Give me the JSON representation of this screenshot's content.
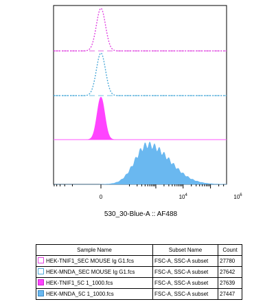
{
  "chart_data": {
    "type": "area",
    "xlabel": "530_30-Blue-A :: AF488",
    "x_scale": "biexponential",
    "x_tick_labels": [
      {
        "value": 0,
        "label": "0"
      },
      {
        "value": 10000,
        "label": "10",
        "exp": "4"
      },
      {
        "value": 1000000,
        "label": "10",
        "exp": "6"
      }
    ],
    "series": [
      {
        "name": "HEK-TNIF1_SEC MOUSE Ig G1.fcs",
        "color": "#e040e0",
        "style": "dotted",
        "filled": false,
        "center": 0,
        "spread": 0.035,
        "offset_line_color": "#e060e0"
      },
      {
        "name": "HEK-MNDA_SEC MOUSE Ig G1.fcs",
        "color": "#4aa8d8",
        "style": "dotted",
        "filled": false,
        "center": 0,
        "spread": 0.035,
        "offset_line_color": "#70c0e0"
      },
      {
        "name": "HEK-TNIF1_5C 1_1000.fcs",
        "color": "#ff44ff",
        "style": "solid",
        "filled": true,
        "center": 0,
        "spread": 0.03,
        "offset_line_color": "#ff66ff"
      },
      {
        "name": "HEK-MNDA_5C 1_1000.fcs",
        "color": "#6ab8f0",
        "style": "solid",
        "filled": true,
        "center": 500,
        "spread": 0.35,
        "offset_line_color": "#000000"
      }
    ]
  },
  "legend": {
    "headers": [
      "Sample Name",
      "Subset Name",
      "Count"
    ],
    "rows": [
      {
        "sample": "HEK-TNIF1_SEC MOUSE Ig G1.fcs",
        "subset": "FSC-A, SSC-A subset",
        "count": "27780",
        "swatch_fill": "#ffffff",
        "swatch_border": "#e040e0"
      },
      {
        "sample": "HEK-MNDA_SEC MOUSE Ig G1.fcs",
        "subset": "FSC-A, SSC-A subset",
        "count": "27642",
        "swatch_fill": "#ffffff",
        "swatch_border": "#4aa8d8"
      },
      {
        "sample": "HEK-TNIF1_5C 1_1000.fcs",
        "subset": "FSC-A, SSC-A subset",
        "count": "27639",
        "swatch_fill": "#ff44ff",
        "swatch_border": "#cc22cc"
      },
      {
        "sample": "HEK-MNDA_5C 1_1000.fcs",
        "subset": "FSC-A, SSC-A subset",
        "count": "27447",
        "swatch_fill": "#6ab8f0",
        "swatch_border": "#3a88c0"
      }
    ]
  }
}
